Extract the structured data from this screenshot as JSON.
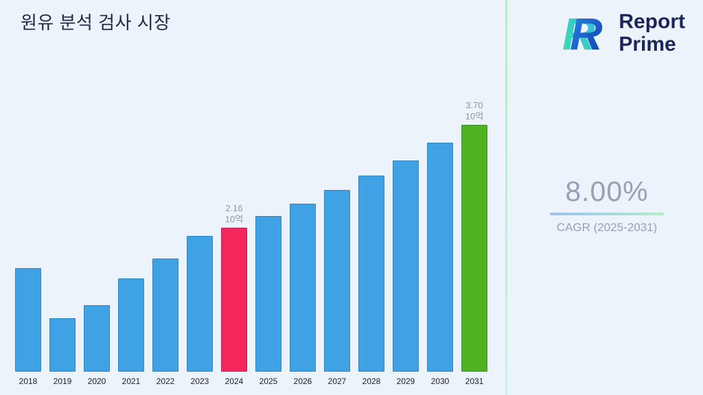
{
  "page": {
    "title": "원유 분석 검사 시장"
  },
  "brand": {
    "line1": "Report",
    "line2": "Prime"
  },
  "cagr": {
    "value": "8.00%",
    "label": "CAGR (2025-2031)"
  },
  "chart_data": {
    "type": "bar",
    "title": "원유 분석 검사 시장",
    "unit_label": "10억",
    "categories": [
      "2018",
      "2019",
      "2020",
      "2021",
      "2022",
      "2023",
      "2024",
      "2025",
      "2026",
      "2027",
      "2028",
      "2029",
      "2030",
      "2031"
    ],
    "values": [
      1.55,
      0.8,
      1.0,
      1.4,
      1.7,
      2.04,
      2.16,
      2.33,
      2.52,
      2.72,
      2.94,
      3.17,
      3.43,
      3.7
    ],
    "ylim": [
      0,
      3.7
    ],
    "xlabel": "",
    "ylabel": "",
    "gridlines": false,
    "legend": "none",
    "bar_color_default": "#3ea2e5",
    "bar_color_overrides": {
      "2024": "#f5265c",
      "2031": "#4fb321"
    },
    "annotations": [
      {
        "category": "2024",
        "value_line": "2.16",
        "unit_line": "10억"
      },
      {
        "category": "2031",
        "value_line": "3.70",
        "unit_line": "10억"
      }
    ]
  }
}
